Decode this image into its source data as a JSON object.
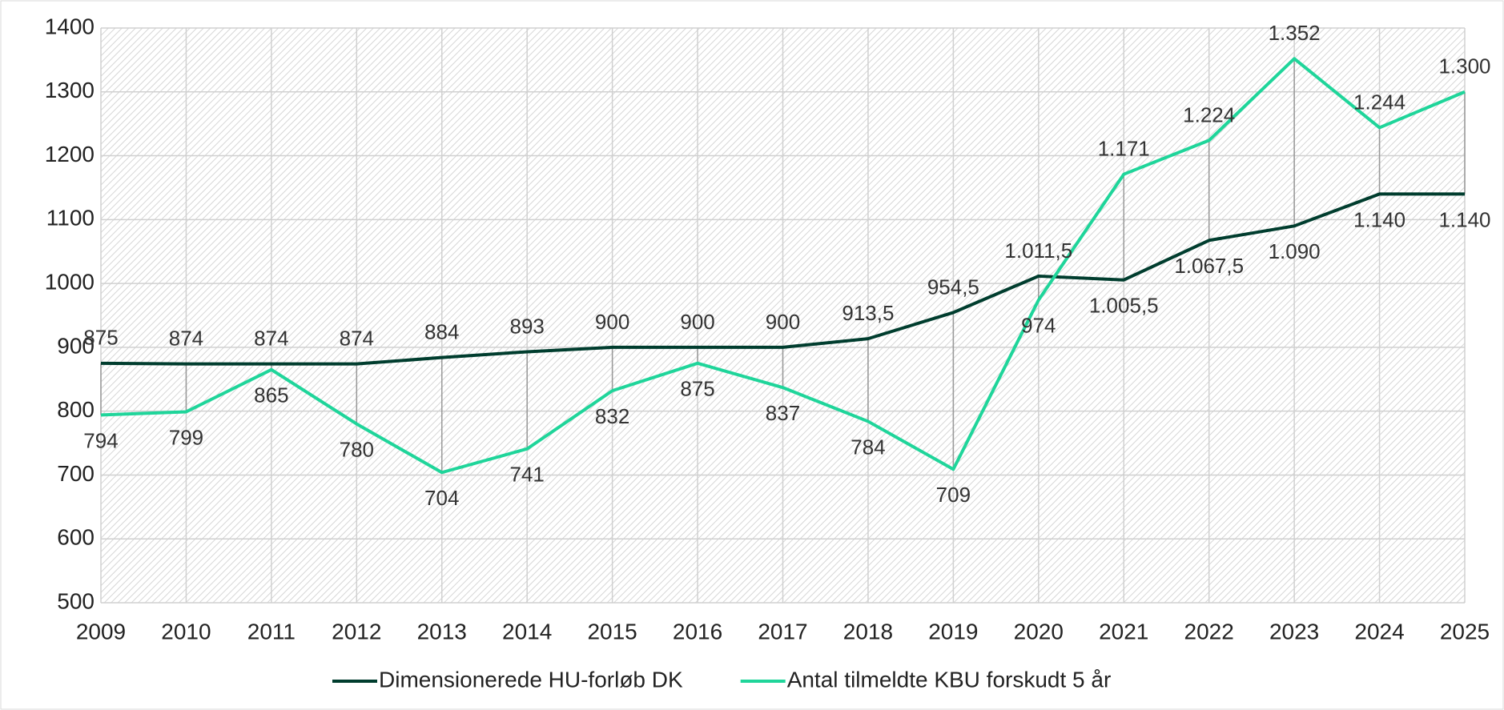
{
  "chart_data": {
    "type": "line",
    "categories": [
      "2009",
      "2010",
      "2011",
      "2012",
      "2013",
      "2014",
      "2015",
      "2016",
      "2017",
      "2018",
      "2019",
      "2020",
      "2021",
      "2022",
      "2023",
      "2024",
      "2025"
    ],
    "series": [
      {
        "name": "Dimensionerede HU-forløb DK",
        "color": "#003d2e",
        "values": [
          875,
          874,
          874,
          874,
          884,
          893,
          900,
          900,
          900,
          913.5,
          954.5,
          1011.5,
          1005.5,
          1067.5,
          1090,
          1140,
          1140
        ],
        "value_labels": [
          "875",
          "874",
          "874",
          "874",
          "884",
          "893",
          "900",
          "900",
          "900",
          "913,5",
          "954,5",
          "1.011,5",
          "1.005,5",
          "1.067,5",
          "1.090",
          "1.140",
          "1.140"
        ]
      },
      {
        "name": "Antal tilmeldte KBU forskudt 5 år",
        "color": "#1fd59a",
        "values": [
          794,
          799,
          865,
          780,
          704,
          741,
          832,
          875,
          837,
          784,
          709,
          974,
          1171,
          1224,
          1352,
          1244,
          1300
        ],
        "value_labels": [
          "794",
          "799",
          "865",
          "780",
          "704",
          "741",
          "832",
          "875",
          "837",
          "784",
          "709",
          "974",
          "1.171",
          "1.224",
          "1.352",
          "1.244",
          "1.300"
        ]
      }
    ],
    "ylim": [
      500,
      1400
    ],
    "yticks": [
      500,
      600,
      700,
      800,
      900,
      1000,
      1100,
      1200,
      1300,
      1400
    ],
    "grid": true,
    "legend": "bottom"
  }
}
